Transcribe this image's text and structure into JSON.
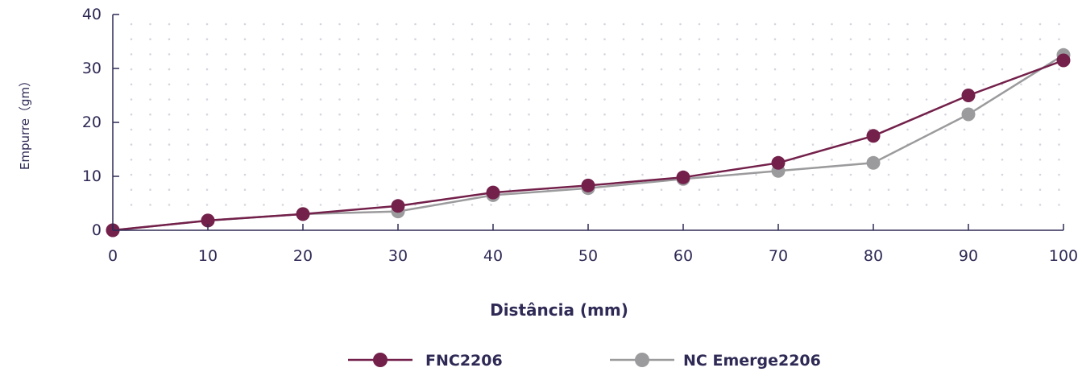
{
  "chart_data": {
    "type": "line",
    "title": "",
    "xlabel": "Distância (mm)",
    "ylabel": "Empurre（gm）",
    "x": [
      0,
      10,
      20,
      30,
      40,
      50,
      60,
      70,
      80,
      90,
      100
    ],
    "xlim": [
      0,
      100
    ],
    "ylim": [
      0,
      40
    ],
    "xticks": [
      "0",
      "10",
      "20",
      "30",
      "40",
      "50",
      "60",
      "70",
      "80",
      "90",
      "100"
    ],
    "yticks": [
      "0",
      "10",
      "20",
      "30",
      "40"
    ],
    "grid": "dotted",
    "legend": "bottom-center",
    "series": [
      {
        "name": "FNC2206",
        "color": "#73204a",
        "values": [
          0,
          1.8,
          3,
          4.5,
          7,
          8.3,
          9.8,
          12.5,
          17.5,
          25,
          31.5
        ]
      },
      {
        "name": "NC Emerge2206",
        "color": "#9b9b9d",
        "values": [
          0,
          1.8,
          3,
          3.5,
          6.5,
          7.8,
          9.5,
          11,
          12.5,
          21.5,
          32.5
        ]
      }
    ]
  }
}
